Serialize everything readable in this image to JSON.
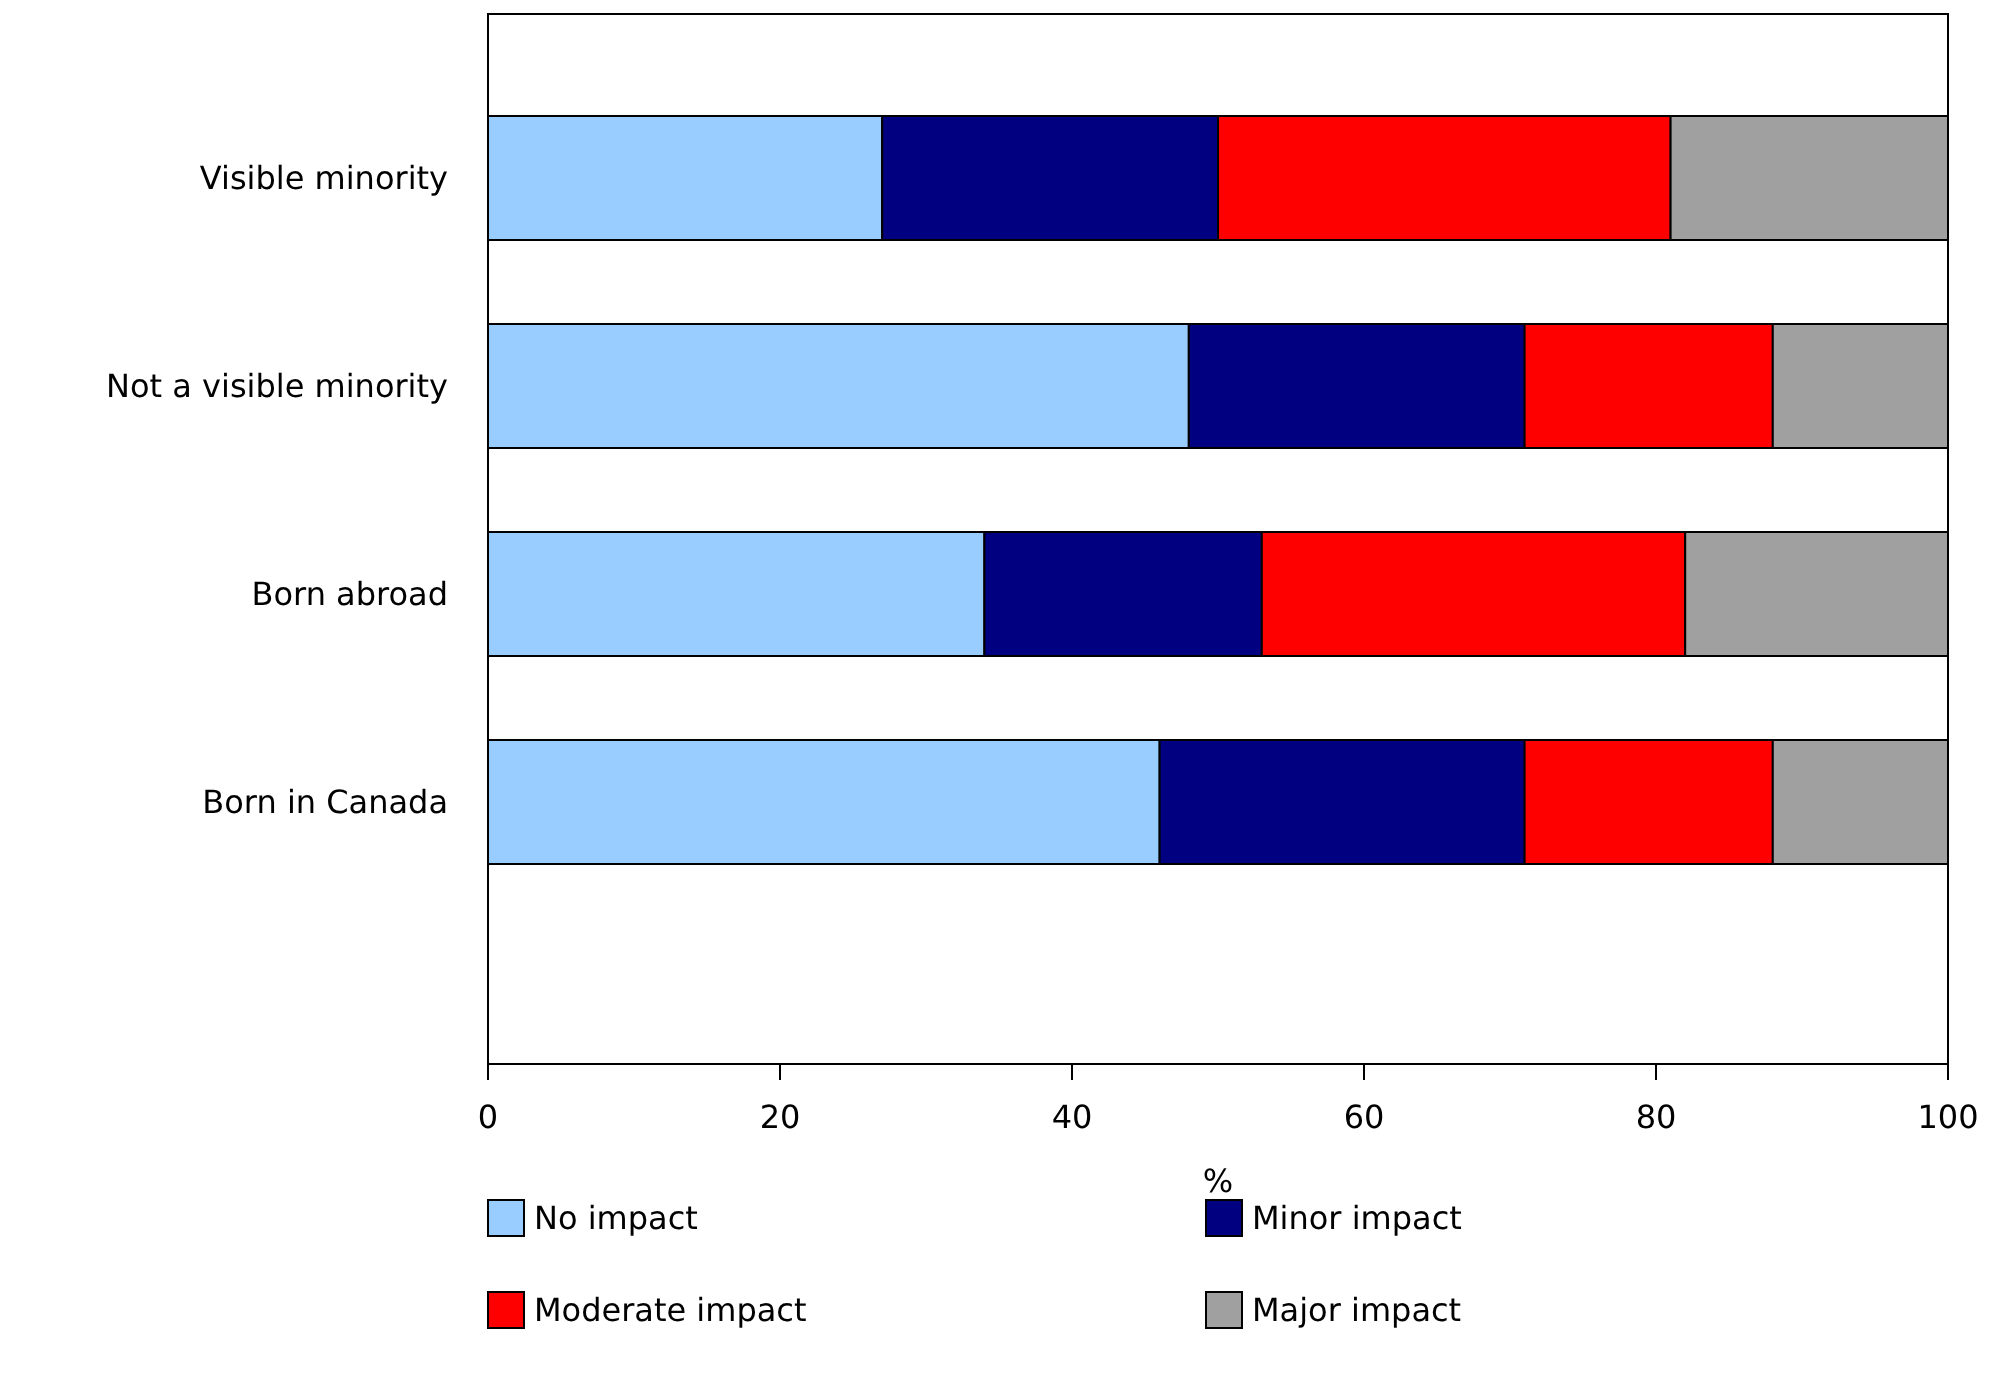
{
  "chart_data": {
    "type": "bar",
    "orientation": "horizontal",
    "stacked": true,
    "xlabel": "%",
    "categories": [
      "Visible minority",
      "Not a visible minority",
      "Born abroad",
      "Born in Canada"
    ],
    "series": [
      {
        "name": "No impact",
        "color": "#99ccff",
        "values": [
          27,
          48,
          34,
          46
        ]
      },
      {
        "name": "Minor impact",
        "color": "#000080",
        "values": [
          23,
          23,
          19,
          25
        ]
      },
      {
        "name": "Moderate impact",
        "color": "#ff0000",
        "values": [
          31,
          17,
          29,
          17
        ]
      },
      {
        "name": "Major impact",
        "color": "#a0a0a0",
        "values": [
          19,
          12,
          18,
          12
        ]
      }
    ],
    "xlim": [
      0,
      100
    ],
    "xticks": [
      0,
      20,
      40,
      60,
      80,
      100
    ],
    "grid": false,
    "legend": "bottom"
  }
}
